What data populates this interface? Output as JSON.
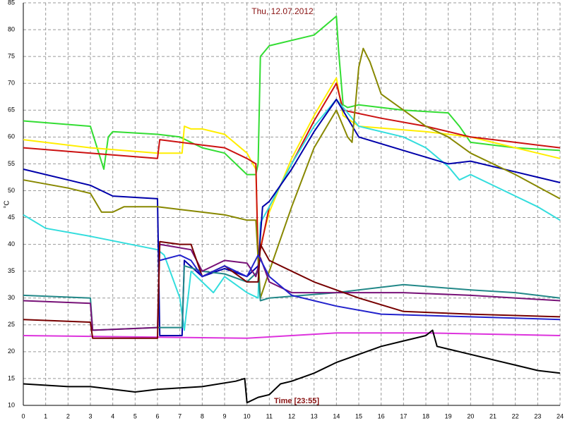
{
  "chart_data": {
    "type": "line",
    "title": "Thu, 12.07.2012",
    "y_label": "°C",
    "x_label": "Time [23:55]",
    "xlim": [
      0,
      24
    ],
    "ylim": [
      10,
      85
    ],
    "xticks": [
      0,
      1,
      2,
      3,
      4,
      5,
      6,
      7,
      8,
      9,
      10,
      11,
      12,
      13,
      14,
      15,
      16,
      17,
      18,
      19,
      20,
      21,
      22,
      23,
      24
    ],
    "yticks": [
      10,
      15,
      20,
      25,
      30,
      35,
      40,
      45,
      50,
      55,
      60,
      65,
      70,
      75,
      80,
      85
    ],
    "grid": true,
    "series": [
      {
        "color": "#33dd33",
        "x": [
          0,
          3,
          3.3,
          3.6,
          3.8,
          4,
          6,
          7,
          8,
          9,
          10,
          10.4,
          10.5,
          10.6,
          11,
          13,
          14,
          14.1,
          14.3,
          14.5,
          15,
          17,
          19,
          19.5,
          20,
          22,
          24
        ],
        "values": [
          63,
          62,
          58,
          54,
          60,
          61,
          60.5,
          60,
          58,
          57,
          53,
          53,
          55,
          75,
          77,
          79,
          82.5,
          76,
          66,
          65.5,
          66,
          65,
          64.5,
          62,
          59,
          58,
          57.5
        ]
      },
      {
        "color": "#ffee00",
        "x": [
          0,
          3,
          6,
          7.1,
          7.2,
          7.5,
          8,
          9,
          10,
          10.4,
          10.5,
          11,
          12,
          13,
          14,
          14.3,
          15,
          18,
          20,
          22,
          24
        ],
        "values": [
          59.5,
          58,
          57,
          57,
          62,
          61.5,
          61.5,
          60.5,
          57,
          54,
          38,
          46,
          56,
          64,
          71,
          64,
          62,
          61,
          60,
          58,
          56
        ]
      },
      {
        "color": "#cc1111",
        "x": [
          0,
          3,
          6,
          6.1,
          8,
          9,
          10,
          10.4,
          10.5,
          11,
          12,
          13,
          14,
          14.3,
          16,
          18,
          20,
          22,
          24
        ],
        "values": [
          58,
          57,
          56,
          59.5,
          58.5,
          58,
          56,
          55,
          37,
          47,
          55,
          63,
          70,
          65,
          63.5,
          62,
          60,
          59,
          58
        ]
      },
      {
        "color": "#33dddd",
        "x": [
          0,
          1,
          3,
          6,
          6.3,
          7,
          7.2,
          7.5,
          8,
          8.5,
          9,
          10,
          10.5,
          10.6,
          11,
          12,
          13,
          14,
          15,
          17,
          18,
          19,
          19.5,
          20,
          21,
          22,
          23,
          24
        ],
        "values": [
          45.5,
          43,
          41.5,
          39,
          38,
          30,
          24,
          35,
          33,
          31,
          34,
          31,
          30,
          44,
          47,
          55,
          62,
          67,
          62,
          60,
          58,
          54.5,
          52,
          53,
          51,
          49,
          47,
          44.5
        ]
      },
      {
        "color": "#0000aa",
        "x": [
          0,
          2,
          3,
          4,
          6,
          6.1,
          7.1,
          7.2,
          8,
          9,
          10,
          10.5,
          10.7,
          11,
          12,
          13,
          14,
          15,
          17,
          19,
          20,
          22,
          24
        ],
        "values": [
          54,
          52,
          51,
          49,
          48.5,
          23,
          23,
          37,
          34,
          35.5,
          34,
          36,
          47,
          48,
          54,
          61,
          67,
          60,
          57.5,
          55,
          55.5,
          53.5,
          51.5
        ]
      },
      {
        "color": "#888800",
        "x": [
          0,
          2,
          3,
          3.5,
          4,
          4.5,
          6,
          7,
          8,
          9,
          9.5,
          10,
          10.4,
          10.6,
          11,
          12,
          13,
          14,
          14.5,
          14.7,
          15,
          15.2,
          15.5,
          16,
          18,
          19,
          20,
          22,
          24
        ],
        "values": [
          52,
          50.5,
          49.5,
          46,
          46,
          47,
          47,
          46.5,
          46,
          45.5,
          45,
          44.5,
          44.5,
          30,
          35,
          47,
          58,
          65,
          60,
          59,
          73,
          76.5,
          74,
          68,
          62,
          60,
          57,
          53,
          48.5
        ]
      },
      {
        "color": "#dd33dd",
        "x": [
          0,
          10,
          14,
          18,
          24
        ],
        "values": [
          23,
          22.5,
          23.5,
          23.5,
          23
        ]
      },
      {
        "color": "#000000",
        "x": [
          0,
          2,
          3,
          5,
          6,
          8,
          9.5,
          9.9,
          10,
          10.5,
          11,
          11.5,
          12,
          13,
          14,
          15,
          16,
          17,
          18,
          18.3,
          18.5,
          19,
          20,
          21,
          22,
          23,
          24
        ],
        "values": [
          14,
          13.5,
          13.5,
          12.5,
          13,
          13.5,
          14.5,
          15,
          10.5,
          11.5,
          12,
          14,
          14.5,
          16,
          18,
          19.5,
          21,
          22,
          23,
          24,
          21,
          20.5,
          19.5,
          18.5,
          17.5,
          16.5,
          16
        ]
      },
      {
        "color": "#228888",
        "x": [
          0,
          3,
          3.1,
          6,
          7.1,
          7.2,
          8,
          9,
          10,
          10.5,
          10.6,
          11,
          14,
          17,
          20,
          22,
          24
        ],
        "values": [
          30.5,
          30,
          24,
          24.5,
          24.5,
          36,
          35,
          34.5,
          33,
          35,
          29.5,
          30,
          31,
          32.5,
          31.5,
          31,
          30
        ]
      },
      {
        "color": "#771177",
        "x": [
          0,
          3,
          3.1,
          6,
          6.1,
          7.5,
          8,
          9,
          10,
          10.4,
          10.6,
          11,
          12,
          14,
          17,
          20,
          24
        ],
        "values": [
          29.5,
          29,
          24,
          24.5,
          40,
          39,
          35,
          37,
          36.5,
          34,
          37.5,
          33,
          31,
          31,
          31,
          30.5,
          29.5
        ]
      },
      {
        "color": "#770000",
        "x": [
          0,
          3,
          3.1,
          6,
          6.1,
          7,
          7.5,
          8,
          9,
          10,
          10.5,
          10.6,
          11,
          12,
          13,
          15,
          17,
          20,
          24
        ],
        "values": [
          26,
          25.5,
          22.5,
          22.5,
          40.5,
          40,
          40,
          34,
          36,
          33,
          33,
          40,
          37,
          35,
          33,
          30,
          27.5,
          27,
          26.5
        ]
      },
      {
        "color": "#2222cc",
        "x": [
          6.1,
          7,
          7.5,
          8,
          9,
          10,
          10.5,
          11,
          12,
          14,
          16,
          20,
          24
        ],
        "values": [
          37,
          38,
          37,
          34,
          36,
          34,
          38,
          34,
          30.5,
          28.5,
          27,
          26.5,
          26
        ]
      }
    ]
  }
}
